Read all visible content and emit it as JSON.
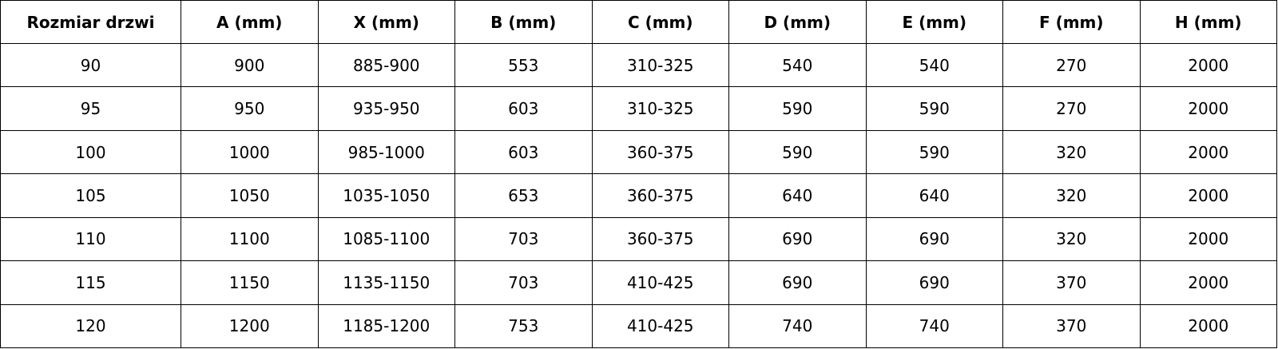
{
  "chart_data": {
    "type": "table",
    "columns": [
      "Rozmiar drzwi",
      "A (mm)",
      "X (mm)",
      "B (mm)",
      "C (mm)",
      "D (mm)",
      "E (mm)",
      "F (mm)",
      "H (mm)"
    ],
    "rows": [
      [
        "90",
        "900",
        "885-900",
        "553",
        "310-325",
        "540",
        "540",
        "270",
        "2000"
      ],
      [
        "95",
        "950",
        "935-950",
        "603",
        "310-325",
        "590",
        "590",
        "270",
        "2000"
      ],
      [
        "100",
        "1000",
        "985-1000",
        "603",
        "360-375",
        "590",
        "590",
        "320",
        "2000"
      ],
      [
        "105",
        "1050",
        "1035-1050",
        "653",
        "360-375",
        "640",
        "640",
        "320",
        "2000"
      ],
      [
        "110",
        "1100",
        "1085-1100",
        "703",
        "360-375",
        "690",
        "690",
        "320",
        "2000"
      ],
      [
        "115",
        "1150",
        "1135-1150",
        "703",
        "410-425",
        "690",
        "690",
        "370",
        "2000"
      ],
      [
        "120",
        "1200",
        "1185-1200",
        "753",
        "410-425",
        "740",
        "740",
        "370",
        "2000"
      ]
    ]
  }
}
